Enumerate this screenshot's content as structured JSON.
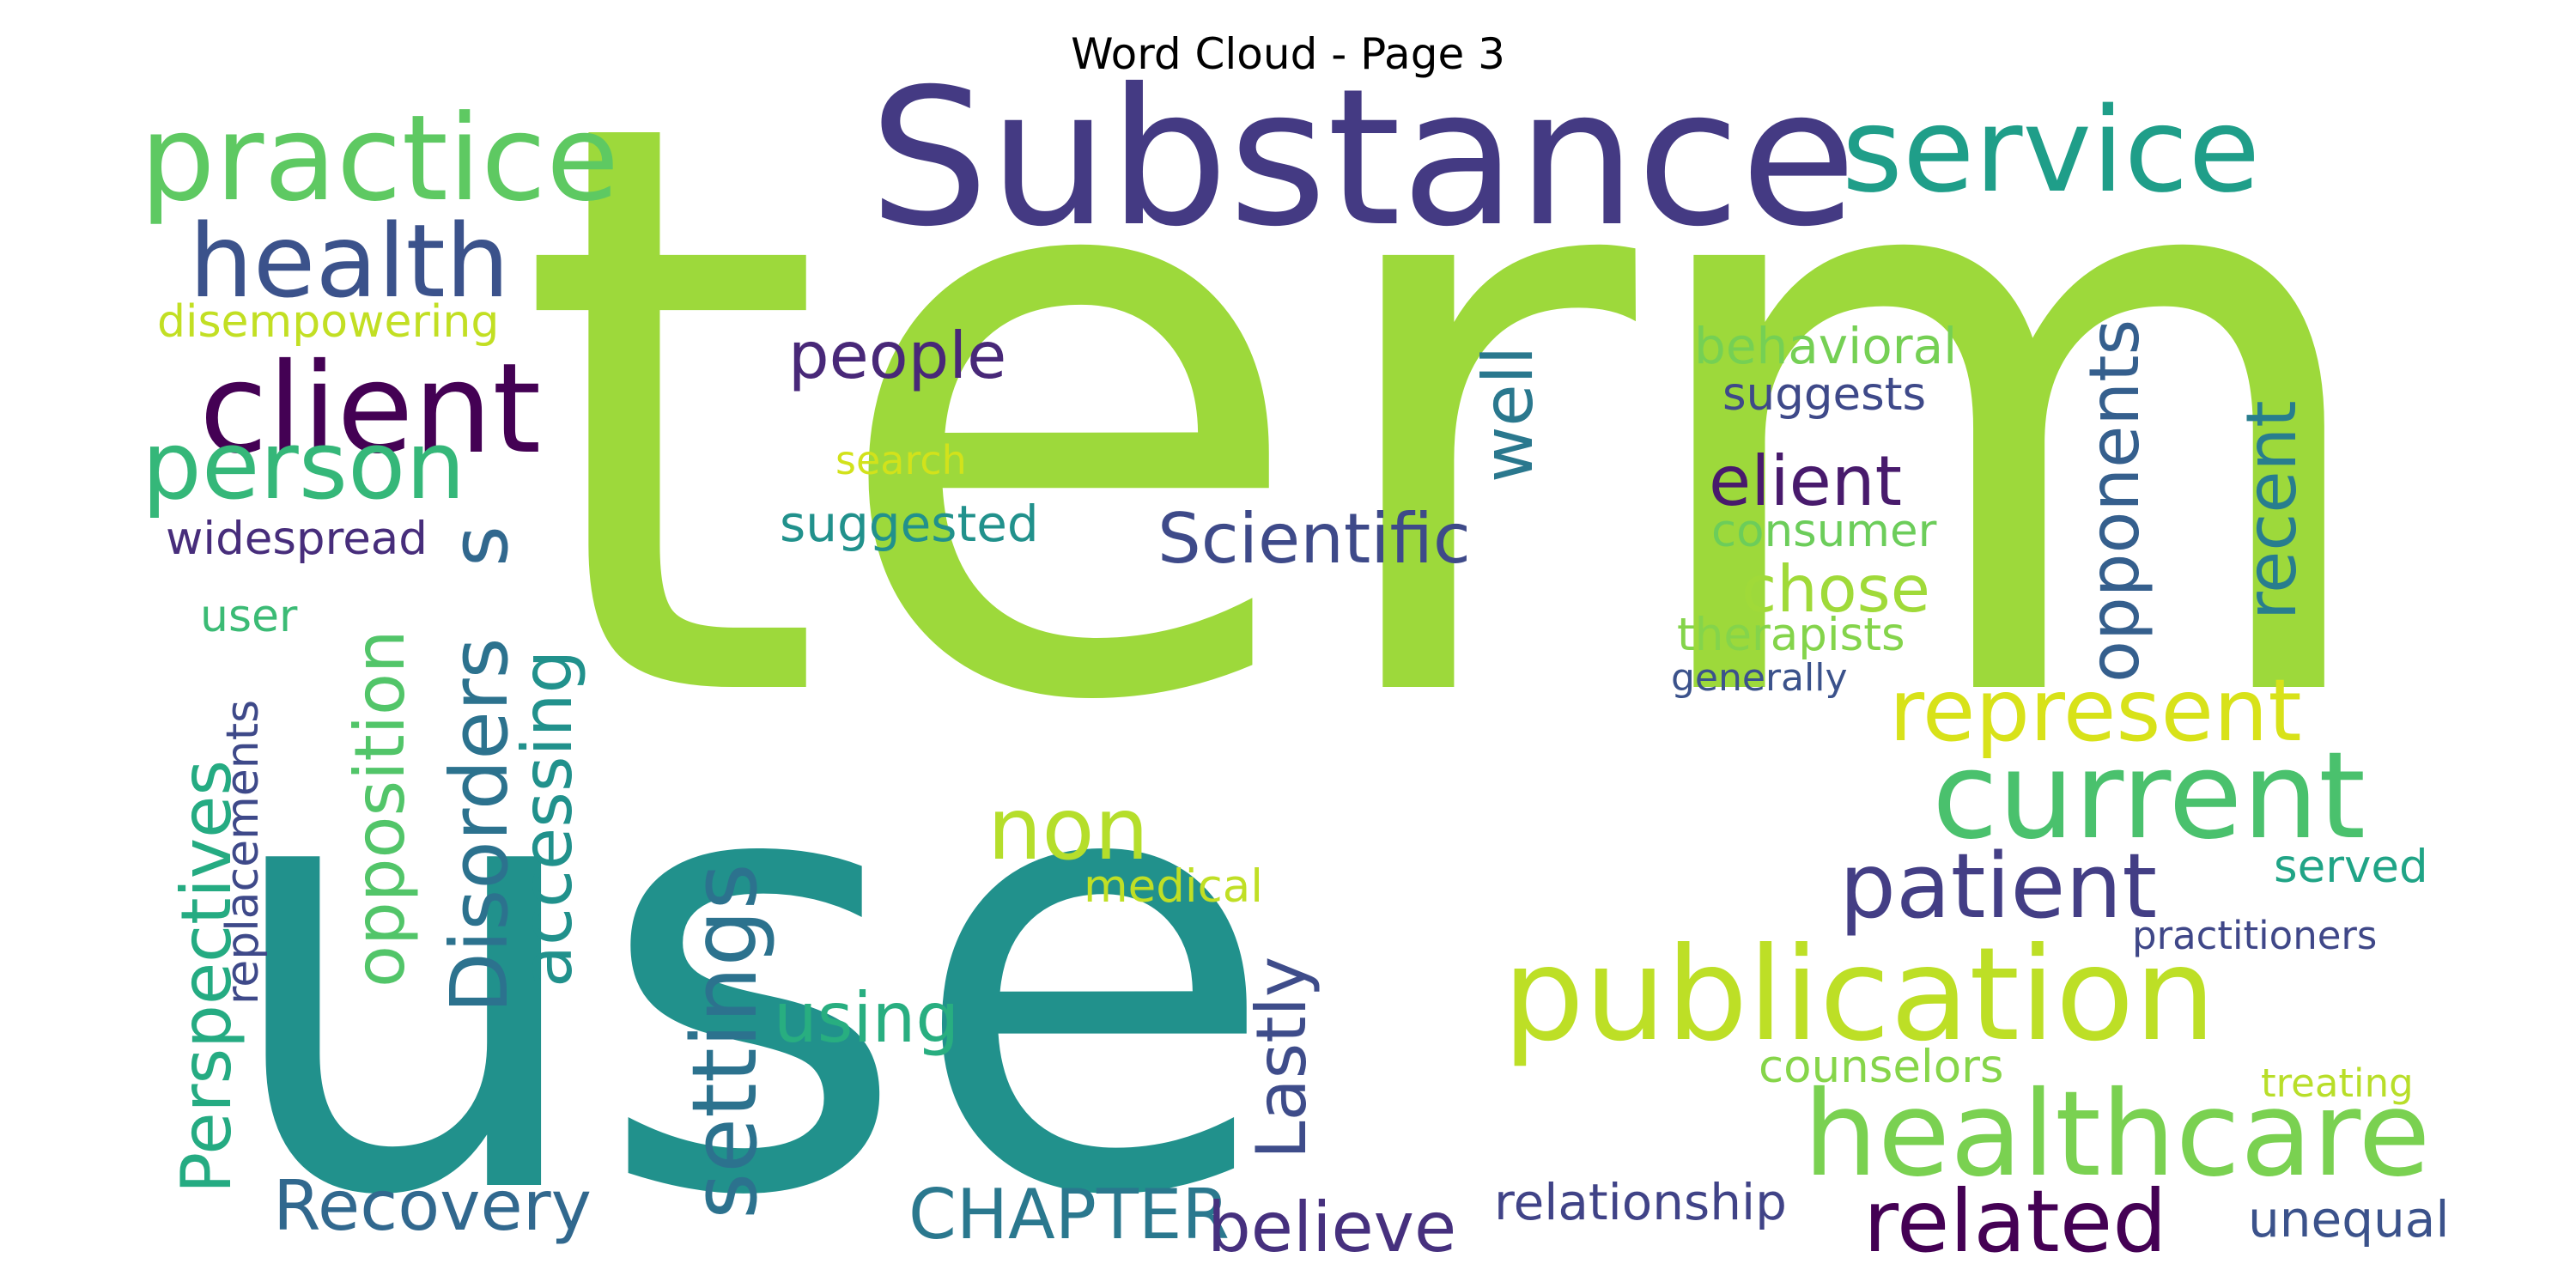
{
  "title": "Word Cloud - Page 3",
  "words": [
    {
      "text": "term",
      "color": "#9dd93b"
    },
    {
      "text": "use",
      "color": "#21918c"
    },
    {
      "text": "Substance",
      "color": "#443a83"
    },
    {
      "text": "service",
      "color": "#1f9e89"
    },
    {
      "text": "practice",
      "color": "#5ec962"
    },
    {
      "text": "health",
      "color": "#3b528b"
    },
    {
      "text": "client",
      "color": "#440154"
    },
    {
      "text": "person",
      "color": "#35b779"
    },
    {
      "text": "disempowering",
      "color": "#c2df23"
    },
    {
      "text": "widespread",
      "color": "#472d7b"
    },
    {
      "text": "user",
      "color": "#3bbb75"
    },
    {
      "text": "s",
      "color": "#31688e"
    },
    {
      "text": "Disorders",
      "color": "#2c728e"
    },
    {
      "text": "accessing",
      "color": "#21918c"
    },
    {
      "text": "opposition",
      "color": "#52c569"
    },
    {
      "text": "Perspectives",
      "color": "#25ab82"
    },
    {
      "text": "replacements",
      "color": "#3e4989"
    },
    {
      "text": "people",
      "color": "#482878"
    },
    {
      "text": "search",
      "color": "#d2e21b"
    },
    {
      "text": "suggested",
      "color": "#21918c"
    },
    {
      "text": "well",
      "color": "#2a788e"
    },
    {
      "text": "Scientific",
      "color": "#3e4a89"
    },
    {
      "text": "behavioral",
      "color": "#75d054"
    },
    {
      "text": "suggests",
      "color": "#3e4989"
    },
    {
      "text": "opponents",
      "color": "#355f8d"
    },
    {
      "text": "recent",
      "color": "#287d8e"
    },
    {
      "text": "elient",
      "color": "#481a6c"
    },
    {
      "text": "consumer",
      "color": "#6ccd5a"
    },
    {
      "text": "chose",
      "color": "#a0da39"
    },
    {
      "text": "therapists",
      "color": "#84d44b"
    },
    {
      "text": "generally",
      "color": "#3b528b"
    },
    {
      "text": "represent",
      "color": "#d8e219"
    },
    {
      "text": "current",
      "color": "#4ac16d"
    },
    {
      "text": "non",
      "color": "#b5de2b"
    },
    {
      "text": "patient",
      "color": "#433e85"
    },
    {
      "text": "settings",
      "color": "#2c728e"
    },
    {
      "text": "publication",
      "color": "#bddf26"
    },
    {
      "text": "served",
      "color": "#20a486"
    },
    {
      "text": "practitioners",
      "color": "#3f4788"
    },
    {
      "text": "medical",
      "color": "#c0df25"
    },
    {
      "text": "using",
      "color": "#28ae80"
    },
    {
      "text": "Lastly",
      "color": "#3e4c8a"
    },
    {
      "text": "healthcare",
      "color": "#7ad151"
    },
    {
      "text": "counselors",
      "color": "#86d549"
    },
    {
      "text": "treating",
      "color": "#b8de29"
    },
    {
      "text": "Recovery",
      "color": "#31688e"
    },
    {
      "text": "CHAPTER",
      "color": "#2a788e"
    },
    {
      "text": "believe",
      "color": "#46307e"
    },
    {
      "text": "relationship",
      "color": "#404387"
    },
    {
      "text": "related",
      "color": "#440154"
    },
    {
      "text": "unequal",
      "color": "#3b528b"
    }
  ]
}
